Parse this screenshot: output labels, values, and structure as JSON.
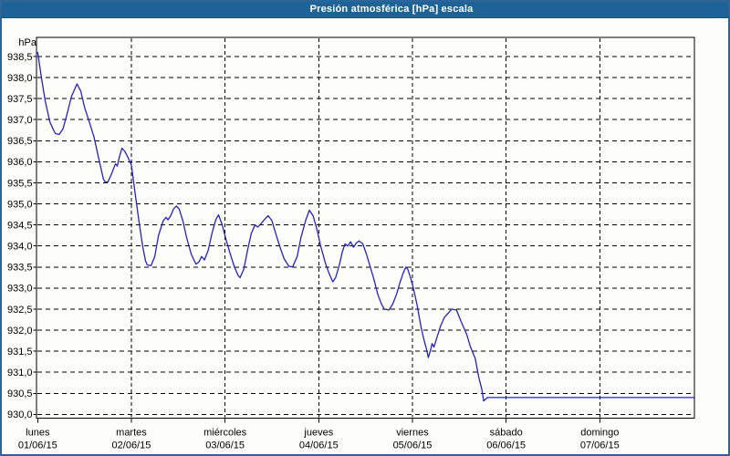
{
  "colors": {
    "titlebar_bg": "#1e6397",
    "titlebar_text": "#ffffff",
    "window_border": "#2e6496",
    "plot_border": "#000000",
    "grid": "#000000",
    "line": "#2222cc",
    "label_text": "#000000",
    "background": "#fdfdfa"
  },
  "chart_data": {
    "type": "line",
    "title": "Presión atmosférica [hPa] escala",
    "xlabel": "",
    "ylabel": "hPa",
    "y_unit": "hPa",
    "ylim": [
      930.0,
      938.5
    ],
    "y_step": 0.5,
    "grid": "dashed",
    "legend": "none",
    "y_tick_labels": [
      "938,5",
      "938,0",
      "937,5",
      "937,0",
      "936,5",
      "936,0",
      "935,5",
      "935,0",
      "934,5",
      "934,0",
      "933,5",
      "933,0",
      "932,5",
      "932,0",
      "931,5",
      "931,0",
      "930,5",
      "930,0"
    ],
    "x_days": [
      {
        "name": "lunes",
        "date": "01/06/15"
      },
      {
        "name": "martes",
        "date": "02/06/15"
      },
      {
        "name": "miércoles",
        "date": "03/06/15"
      },
      {
        "name": "jueves",
        "date": "04/06/15"
      },
      {
        "name": "viernes",
        "date": "05/06/15"
      },
      {
        "name": "sábado",
        "date": "06/06/15"
      },
      {
        "name": "domingo",
        "date": "07/06/15"
      }
    ],
    "x_range_days": [
      0,
      7
    ],
    "series": [
      {
        "name": "Presión atmosférica",
        "color": "#2222cc",
        "points": [
          [
            0.0,
            938.6
          ],
          [
            0.04,
            938.0
          ],
          [
            0.08,
            937.45
          ],
          [
            0.13,
            936.95
          ],
          [
            0.17,
            936.75
          ],
          [
            0.19,
            936.67
          ],
          [
            0.23,
            936.65
          ],
          [
            0.27,
            936.78
          ],
          [
            0.31,
            937.1
          ],
          [
            0.36,
            937.55
          ],
          [
            0.42,
            937.85
          ],
          [
            0.46,
            937.68
          ],
          [
            0.5,
            937.3
          ],
          [
            0.55,
            936.95
          ],
          [
            0.6,
            936.6
          ],
          [
            0.65,
            936.1
          ],
          [
            0.7,
            935.6
          ],
          [
            0.72,
            935.52
          ],
          [
            0.75,
            935.52
          ],
          [
            0.79,
            935.72
          ],
          [
            0.83,
            935.95
          ],
          [
            0.85,
            935.9
          ],
          [
            0.87,
            936.1
          ],
          [
            0.9,
            936.32
          ],
          [
            0.93,
            936.25
          ],
          [
            0.96,
            936.12
          ],
          [
            1.0,
            935.92
          ],
          [
            1.04,
            935.25
          ],
          [
            1.08,
            934.6
          ],
          [
            1.12,
            934.0
          ],
          [
            1.15,
            933.65
          ],
          [
            1.17,
            933.55
          ],
          [
            1.21,
            933.53
          ],
          [
            1.25,
            933.75
          ],
          [
            1.29,
            934.25
          ],
          [
            1.34,
            934.6
          ],
          [
            1.37,
            934.68
          ],
          [
            1.39,
            934.62
          ],
          [
            1.42,
            934.72
          ],
          [
            1.45,
            934.88
          ],
          [
            1.48,
            934.95
          ],
          [
            1.51,
            934.88
          ],
          [
            1.55,
            934.6
          ],
          [
            1.59,
            934.2
          ],
          [
            1.64,
            933.8
          ],
          [
            1.69,
            933.57
          ],
          [
            1.72,
            933.62
          ],
          [
            1.75,
            933.75
          ],
          [
            1.78,
            933.67
          ],
          [
            1.82,
            933.9
          ],
          [
            1.86,
            934.3
          ],
          [
            1.9,
            934.62
          ],
          [
            1.93,
            934.74
          ],
          [
            1.97,
            934.5
          ],
          [
            2.01,
            934.15
          ],
          [
            2.05,
            933.85
          ],
          [
            2.1,
            933.5
          ],
          [
            2.14,
            933.3
          ],
          [
            2.16,
            933.25
          ],
          [
            2.2,
            933.45
          ],
          [
            2.24,
            933.9
          ],
          [
            2.28,
            934.3
          ],
          [
            2.32,
            934.5
          ],
          [
            2.35,
            934.45
          ],
          [
            2.39,
            934.55
          ],
          [
            2.43,
            934.65
          ],
          [
            2.46,
            934.72
          ],
          [
            2.5,
            934.6
          ],
          [
            2.54,
            934.3
          ],
          [
            2.59,
            933.95
          ],
          [
            2.63,
            933.7
          ],
          [
            2.68,
            933.52
          ],
          [
            2.72,
            933.5
          ],
          [
            2.77,
            933.75
          ],
          [
            2.81,
            934.2
          ],
          [
            2.86,
            934.6
          ],
          [
            2.9,
            934.85
          ],
          [
            2.94,
            934.72
          ],
          [
            2.98,
            934.4
          ],
          [
            3.02,
            934.0
          ],
          [
            3.07,
            933.6
          ],
          [
            3.11,
            933.35
          ],
          [
            3.15,
            933.15
          ],
          [
            3.18,
            933.25
          ],
          [
            3.22,
            933.55
          ],
          [
            3.25,
            933.85
          ],
          [
            3.28,
            934.05
          ],
          [
            3.31,
            934.0
          ],
          [
            3.34,
            934.1
          ],
          [
            3.37,
            933.97
          ],
          [
            3.4,
            934.07
          ],
          [
            3.43,
            934.12
          ],
          [
            3.47,
            934.05
          ],
          [
            3.51,
            933.8
          ],
          [
            3.55,
            933.5
          ],
          [
            3.59,
            933.2
          ],
          [
            3.63,
            932.85
          ],
          [
            3.67,
            932.62
          ],
          [
            3.7,
            932.5
          ],
          [
            3.75,
            932.48
          ],
          [
            3.79,
            932.62
          ],
          [
            3.83,
            932.85
          ],
          [
            3.87,
            933.15
          ],
          [
            3.9,
            933.35
          ],
          [
            3.93,
            933.5
          ],
          [
            3.95,
            933.45
          ],
          [
            3.98,
            933.25
          ],
          [
            4.01,
            933.0
          ],
          [
            4.05,
            932.6
          ],
          [
            4.09,
            932.1
          ],
          [
            4.12,
            931.8
          ],
          [
            4.15,
            931.55
          ],
          [
            4.17,
            931.35
          ],
          [
            4.19,
            931.5
          ],
          [
            4.21,
            931.68
          ],
          [
            4.23,
            931.6
          ],
          [
            4.26,
            931.82
          ],
          [
            4.3,
            932.1
          ],
          [
            4.34,
            932.3
          ],
          [
            4.38,
            932.4
          ],
          [
            4.42,
            932.5
          ],
          [
            4.47,
            932.48
          ],
          [
            4.53,
            932.15
          ],
          [
            4.58,
            931.9
          ],
          [
            4.62,
            931.6
          ],
          [
            4.67,
            931.33
          ],
          [
            4.71,
            930.86
          ],
          [
            4.74,
            930.6
          ],
          [
            4.76,
            930.32
          ],
          [
            4.78,
            930.36
          ],
          [
            4.8,
            930.4
          ],
          [
            7.0,
            930.4
          ]
        ]
      }
    ]
  }
}
